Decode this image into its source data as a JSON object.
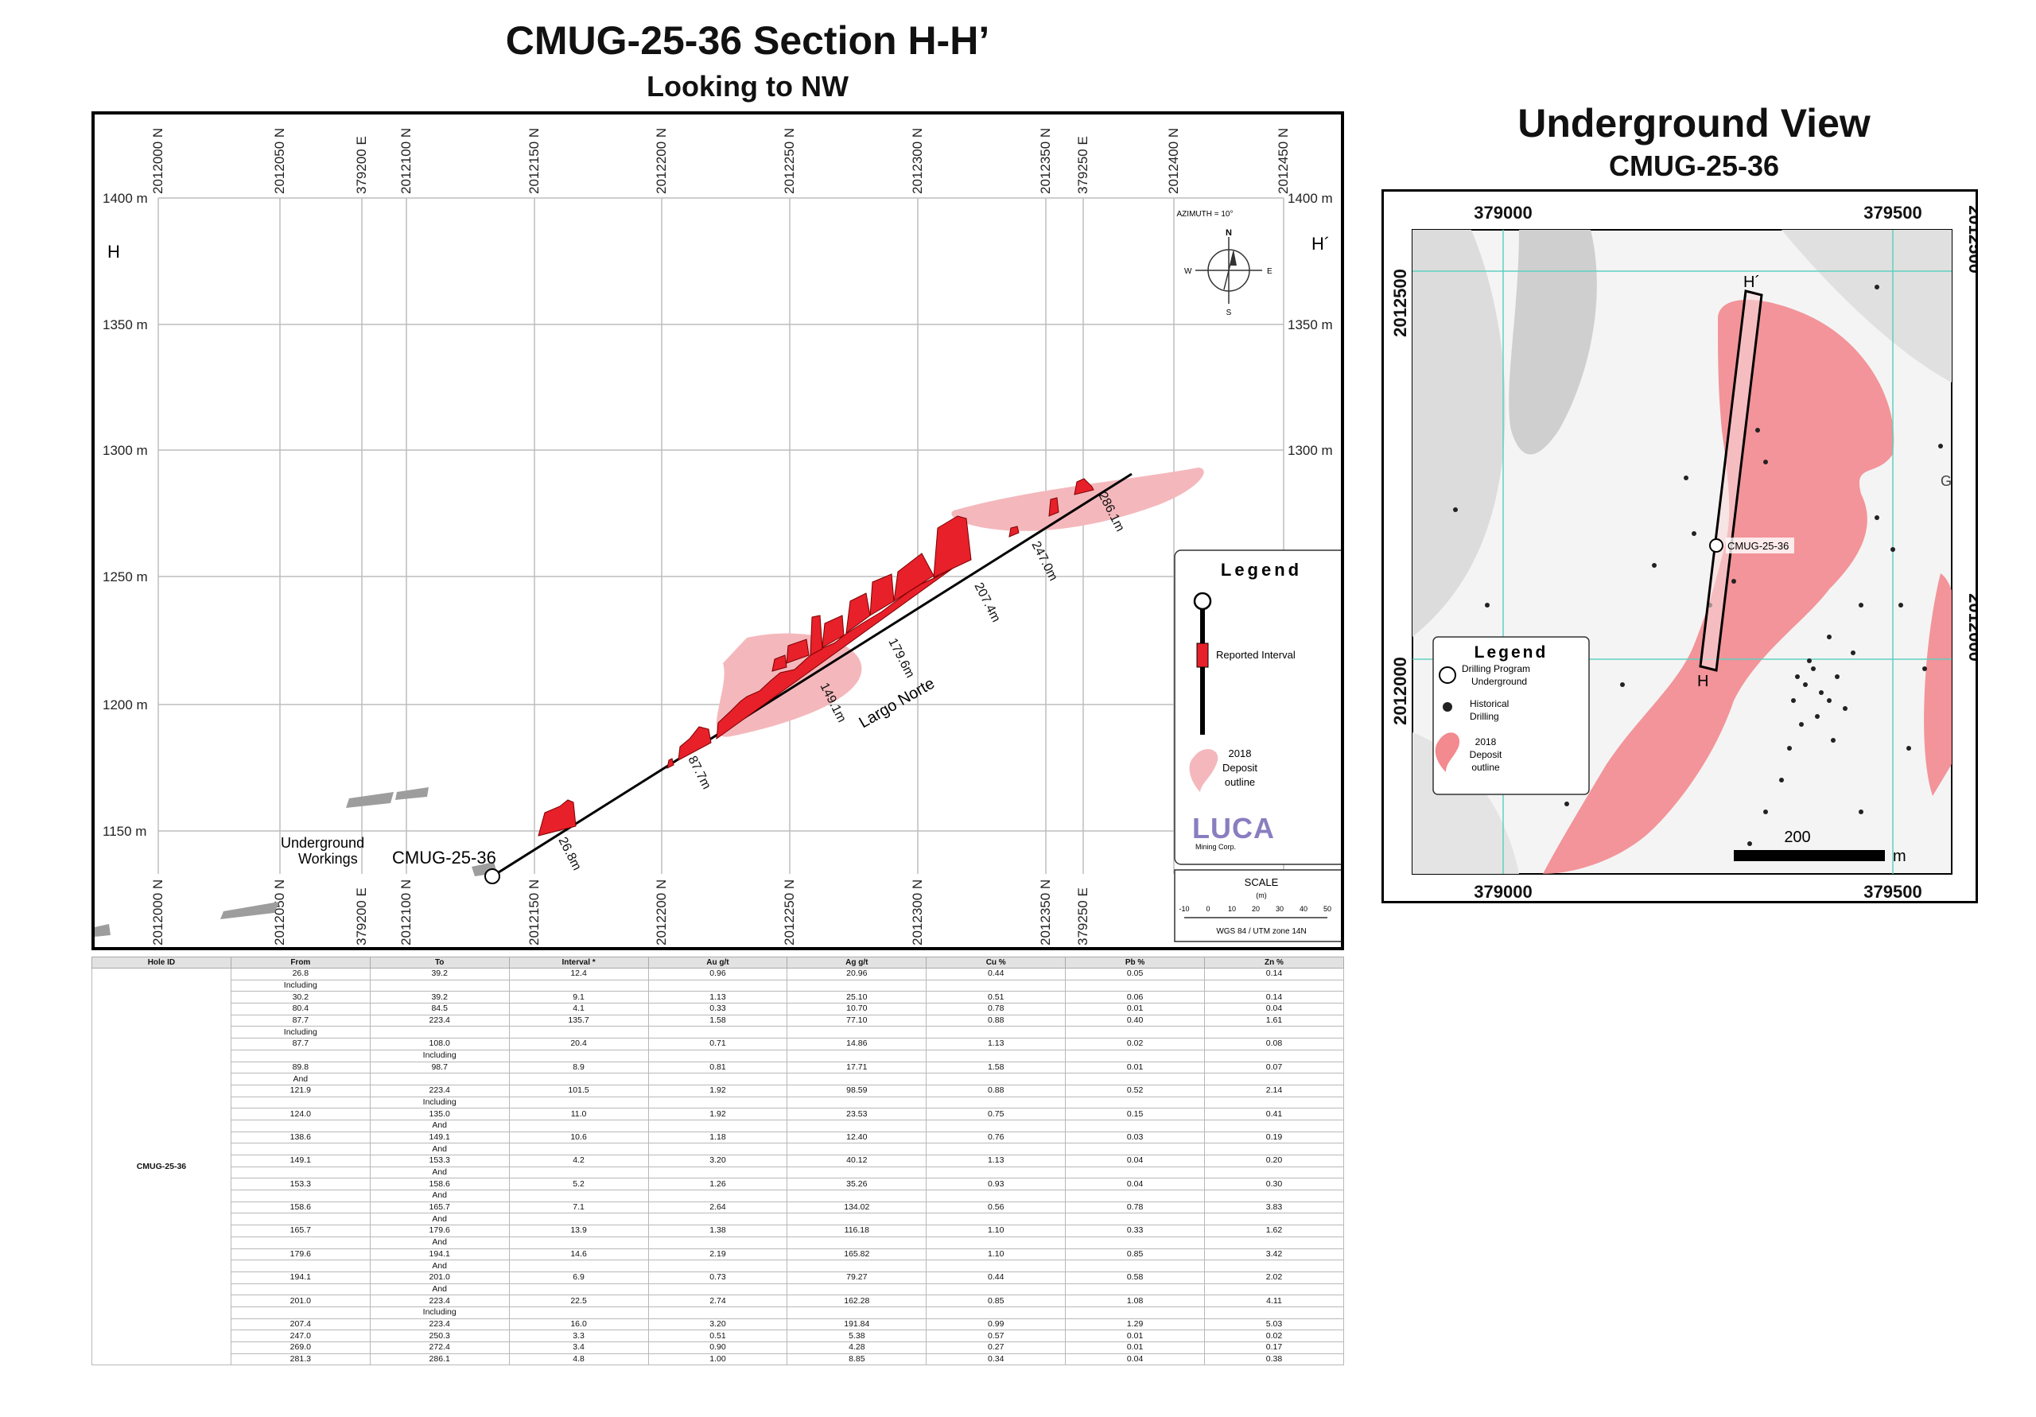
{
  "titles": {
    "section_title": "CMUG-25-36 Section H-H’",
    "section_subtitle": "Looking to NW",
    "uv_title": "Underground View",
    "uv_subtitle": "CMUG-25-36"
  },
  "section": {
    "northing_labels": [
      "2012000 N",
      "2012050 N",
      "2012100 N",
      "2012150 N",
      "2012200 N",
      "2012250 N",
      "2012300 N",
      "2012350 N",
      "2012400 N",
      "2012450 N"
    ],
    "easting_labels": [
      "379200 E",
      "379250 E"
    ],
    "elevation_labels": [
      "1400 m",
      "1350 m",
      "1300 m",
      "1250 m",
      "1200 m",
      "1150 m"
    ],
    "section_start": "H",
    "section_end": "H´",
    "azimuth": "AZIMUTH = 10°",
    "compass": {
      "n": "N",
      "s": "S",
      "e": "E",
      "w": "W"
    },
    "hole_label": "CMUG-25-36",
    "workings_label_1": "Underground",
    "workings_label_2": "Workings",
    "orebody_label": "Largo Norte",
    "depth_labels": [
      "26.8m",
      "87.7m",
      "149.1m",
      "179.6m",
      "207.4m",
      "247.0m",
      "286.1m"
    ],
    "legend": {
      "title": "Legend",
      "interval": "Reported Interval",
      "outline_1": "2018",
      "outline_2": "Deposit",
      "outline_3": "outline"
    },
    "logo": {
      "name": "LUCA",
      "sub": "Mining Corp."
    },
    "scale": {
      "title": "SCALE",
      "unit": "(m)",
      "ticks": [
        "-10",
        "0",
        "10",
        "20",
        "30",
        "40",
        "50"
      ],
      "crs": "WGS 84 / UTM zone 14N"
    },
    "colors": {
      "interval": "#e8202a",
      "deposit": "#f4b8bc",
      "grid": "#bdbdbd"
    }
  },
  "underground_view": {
    "x_labels": [
      "379000",
      "379500"
    ],
    "y_labels": [
      "2012500",
      "2012000"
    ],
    "hole_label": "CMUG-25-36",
    "h_label": "H",
    "h_prime_label": "H´",
    "g_label": "G´",
    "scale_value": "200",
    "scale_unit": "m",
    "legend": {
      "title": "Legend",
      "item1_a": "Drilling Program",
      "item1_b": "Underground",
      "item2_a": "Historical",
      "item2_b": "Drilling",
      "item3_a": "2018",
      "item3_b": "Deposit",
      "item3_c": "outline"
    }
  },
  "table": {
    "headers": [
      "Hole ID",
      "From",
      "To",
      "Interval *",
      "Au g/t",
      "Ag g/t",
      "Cu %",
      "Pb %",
      "Zn %"
    ],
    "hole_id": "CMUG-25-36",
    "rows": [
      [
        "26.8",
        "39.2",
        "12.4",
        "0.96",
        "20.96",
        "0.44",
        "0.05",
        "0.14"
      ],
      [
        "Including",
        "",
        "",
        "",
        "",
        "",
        "",
        ""
      ],
      [
        "30.2",
        "39.2",
        "9.1",
        "1.13",
        "25.10",
        "0.51",
        "0.06",
        "0.14"
      ],
      [
        "80.4",
        "84.5",
        "4.1",
        "0.33",
        "10.70",
        "0.78",
        "0.01",
        "0.04"
      ],
      [
        "87.7",
        "223.4",
        "135.7",
        "1.58",
        "77.10",
        "0.88",
        "0.40",
        "1.61"
      ],
      [
        "Including",
        "",
        "",
        "",
        "",
        "",
        "",
        ""
      ],
      [
        "87.7",
        "108.0",
        "20.4",
        "0.71",
        "14.86",
        "1.13",
        "0.02",
        "0.08"
      ],
      [
        "",
        "Including",
        "",
        "",
        "",
        "",
        "",
        ""
      ],
      [
        "89.8",
        "98.7",
        "8.9",
        "0.81",
        "17.71",
        "1.58",
        "0.01",
        "0.07"
      ],
      [
        "And",
        "",
        "",
        "",
        "",
        "",
        "",
        ""
      ],
      [
        "121.9",
        "223.4",
        "101.5",
        "1.92",
        "98.59",
        "0.88",
        "0.52",
        "2.14"
      ],
      [
        "",
        "Including",
        "",
        "",
        "",
        "",
        "",
        ""
      ],
      [
        "124.0",
        "135.0",
        "11.0",
        "1.92",
        "23.53",
        "0.75",
        "0.15",
        "0.41"
      ],
      [
        "",
        "And",
        "",
        "",
        "",
        "",
        "",
        ""
      ],
      [
        "138.6",
        "149.1",
        "10.6",
        "1.18",
        "12.40",
        "0.76",
        "0.03",
        "0.19"
      ],
      [
        "",
        "And",
        "",
        "",
        "",
        "",
        "",
        ""
      ],
      [
        "149.1",
        "153.3",
        "4.2",
        "3.20",
        "40.12",
        "1.13",
        "0.04",
        "0.20"
      ],
      [
        "",
        "And",
        "",
        "",
        "",
        "",
        "",
        ""
      ],
      [
        "153.3",
        "158.6",
        "5.2",
        "1.26",
        "35.26",
        "0.93",
        "0.04",
        "0.30"
      ],
      [
        "",
        "And",
        "",
        "",
        "",
        "",
        "",
        ""
      ],
      [
        "158.6",
        "165.7",
        "7.1",
        "2.64",
        "134.02",
        "0.56",
        "0.78",
        "3.83"
      ],
      [
        "",
        "And",
        "",
        "",
        "",
        "",
        "",
        ""
      ],
      [
        "165.7",
        "179.6",
        "13.9",
        "1.38",
        "116.18",
        "1.10",
        "0.33",
        "1.62"
      ],
      [
        "",
        "And",
        "",
        "",
        "",
        "",
        "",
        ""
      ],
      [
        "179.6",
        "194.1",
        "14.6",
        "2.19",
        "165.82",
        "1.10",
        "0.85",
        "3.42"
      ],
      [
        "",
        "And",
        "",
        "",
        "",
        "",
        "",
        ""
      ],
      [
        "194.1",
        "201.0",
        "6.9",
        "0.73",
        "79.27",
        "0.44",
        "0.58",
        "2.02"
      ],
      [
        "",
        "And",
        "",
        "",
        "",
        "",
        "",
        ""
      ],
      [
        "201.0",
        "223.4",
        "22.5",
        "2.74",
        "162.28",
        "0.85",
        "1.08",
        "4.11"
      ],
      [
        "",
        "Including",
        "",
        "",
        "",
        "",
        "",
        ""
      ],
      [
        "207.4",
        "223.4",
        "16.0",
        "3.20",
        "191.84",
        "0.99",
        "1.29",
        "5.03"
      ],
      [
        "247.0",
        "250.3",
        "3.3",
        "0.51",
        "5.38",
        "0.57",
        "0.01",
        "0.02"
      ],
      [
        "269.0",
        "272.4",
        "3.4",
        "0.90",
        "4.28",
        "0.27",
        "0.01",
        "0.17"
      ],
      [
        "281.3",
        "286.1",
        "4.8",
        "1.00",
        "8.85",
        "0.34",
        "0.04",
        "0.38"
      ]
    ]
  }
}
